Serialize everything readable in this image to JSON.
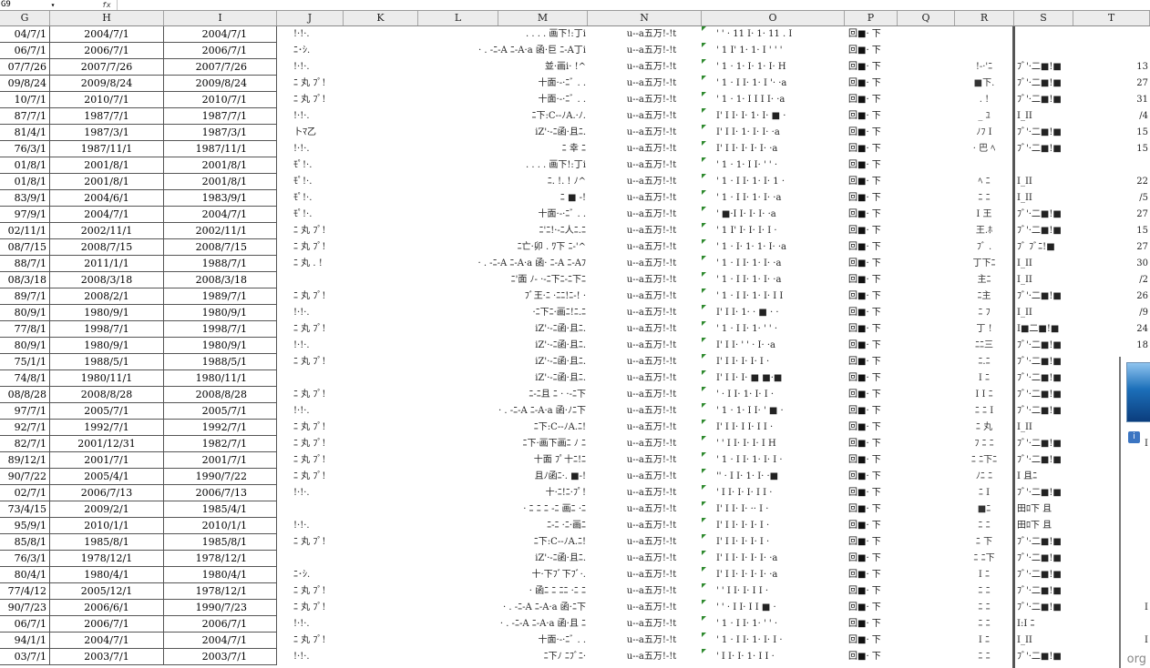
{
  "formula_bar": {
    "name_box": "G9",
    "fx_label": "fx",
    "dropdown_glyph": "▾"
  },
  "columns": [
    "G",
    "H",
    "J",
    "K",
    "L",
    "M",
    "N",
    "O",
    "P",
    "Q",
    "R",
    "S",
    "T"
  ],
  "columns_full": [
    "G",
    "H",
    "I",
    "J",
    "K",
    "L",
    "M",
    "N",
    "O",
    "P",
    "Q",
    "R",
    "S",
    "T"
  ],
  "rows": [
    {
      "g": "04/7/1",
      "h": "2004/7/1",
      "i": "2004/7/1",
      "j": "!·!·.",
      "l": ". . . . 画下!:丁i",
      "n": "u--a五万!-!t",
      "o": "' ' · 11 I· 1· 11 . I",
      "p": "回■· 下",
      "r": "",
      "s": "",
      "t": ""
    },
    {
      "g": "06/7/1",
      "h": "2006/7/1",
      "i": "2006/7/1",
      "j": "ﾆ･ｼ.",
      "l": "· . -ﾆ-A ﾆ-A·a 函·巨 ﾆ-A丁i",
      "n": "u--a五万!-!t",
      "o": "' 1 I' 1· 1· I ' ' '",
      "p": "回■· 下",
      "r": "",
      "s": "",
      "t": ""
    },
    {
      "g": "07/7/26",
      "h": "2007/7/26",
      "i": "2007/7/26",
      "j": "!·!·.",
      "l": "並·画i· !^",
      "n": "u--a五万!-!t",
      "o": "' 1 · 1· I· 1· I· H",
      "p": "回■· 下",
      "r": "!-·'ﾆ",
      "s": "ﾌﾞ'·二■!■",
      "t": "13"
    },
    {
      "g": "09/8/24",
      "h": "2009/8/24",
      "i": "2009/8/24",
      "j": "ﾆ 丸 ﾌﾟ!",
      "l": "十面·-·ﾆﾞ . .",
      "n": "u--a五万!-!t",
      "o": "' 1 · I I· 1· I '· ·a",
      "p": "回■· 下",
      "r": "■下.",
      "s": "ﾌﾞ'·二■!■",
      "t": "27"
    },
    {
      "g": "10/7/1",
      "h": "2010/7/1",
      "i": "2010/7/1",
      "j": "ﾆ 丸 ﾌﾟ!",
      "l": "十面·-·ﾆﾞ . .",
      "n": "u--a五万!-!t",
      "o": "' 1 · 1· I I I I· ·a",
      "p": "回■· 下",
      "r": ". !",
      "s": "ﾌﾞ'·二■!■",
      "t": "31"
    },
    {
      "g": "87/7/1",
      "h": "1987/7/1",
      "i": "1987/7/1",
      "j": "!·!·.",
      "l": "ﾆ下:C--ﾉA.·ﾉ.",
      "n": "u--a五万!-!t",
      "o": "I' I I· I· 1· I· ■ ·",
      "p": "回■· 下",
      "r": "_ ﾕ",
      "s": "I_II",
      "t": "/4"
    },
    {
      "g": "81/4/1",
      "h": "1987/3/1",
      "i": "1987/3/1",
      "j": "卜ﾏ乙",
      "l": "iZ'·-ﾆ函·且ﾆ.",
      "n": "u--a五万!-!t",
      "o": "I' I I· 1· I· I· ·a",
      "p": "回■· 下",
      "r": "ﾉﾌ I",
      "s": "ﾌﾞ'·二■!■",
      "t": "15"
    },
    {
      "g": "76/3/1",
      "h": "1987/11/1",
      "i": "1987/11/1",
      "j": "!·!·.",
      "l": "ﾆ 幸 ﾆ",
      "n": "u--a五万!-!t",
      "o": "I' I I· I· I· I· ·a",
      "p": "回■· 下",
      "r": "· 巴 ﾍ",
      "s": "ﾌﾞ'·二■!■",
      "t": "15"
    },
    {
      "g": "01/8/1",
      "h": "2001/8/1",
      "i": "2001/8/1",
      "j": "ﾓﾟ!·.",
      "l": ". . . . 画下!:丁i",
      "n": "u--a五万!-!t",
      "o": "' 1 · 1· I I· ' ' ·",
      "p": "回■· 下",
      "r": "",
      "s": "",
      "t": ""
    },
    {
      "g": "01/8/1",
      "h": "2001/8/1",
      "i": "2001/8/1",
      "j": "ﾓﾟ!·.",
      "l": "ﾆ. !. ! ﾉ^",
      "n": "u--a五万!-!t",
      "o": "' 1 · I I· 1· I· 1 ·",
      "p": "回■· 下",
      "r": "ﾍ ﾆ",
      "s": "I_II",
      "t": "22"
    },
    {
      "g": "83/9/1",
      "h": "2004/6/1",
      "i": "1983/9/1",
      "j": "ﾓﾟ!·.",
      "l": "ﾆ ■ -!",
      "n": "u--a五万!-!t",
      "o": "' 1 · I I· 1· I· ·a",
      "p": "回■· 下",
      "r": "ﾆ ﾆ",
      "s": "I_II",
      "t": "/5"
    },
    {
      "g": "97/9/1",
      "h": "2004/7/1",
      "i": "2004/7/1",
      "j": "ﾓﾟ!·.",
      "l": "十面·-·ﾆﾞ . .",
      "n": "u--a五万!-!t",
      "o": "' ■·I I· I· I· ·a",
      "p": "回■· 下",
      "r": "I 王",
      "s": "ﾌﾞ'·二■!■",
      "t": "27"
    },
    {
      "g": "02/11/1",
      "h": "2002/11/1",
      "i": "2002/11/1",
      "j": "ﾆ 丸 ﾌﾟ!",
      "l": "ﾆ'ﾆ!·-ﾆ人ﾆ.ﾆ",
      "n": "u--a五万!-!t",
      "o": "' 1 I' I· I· I· I ·",
      "p": "回■· 下",
      "r": "王.ﾎ",
      "s": "ﾌﾞ'·二■!■",
      "t": "15"
    },
    {
      "g": "08/7/15",
      "h": "2008/7/15",
      "i": "2008/7/15",
      "j": "ﾆ 丸 ﾌﾟ!",
      "l": "ﾆ亡·卯 . ﾜ下 ﾆ-'^",
      "n": "u--a五万!-!t",
      "o": "' 1 · I· 1· 1· I· ·a",
      "p": "回■· 下",
      "r": "ﾌﾞ .",
      "s": "ﾌﾞ ﾌﾞﾆ!■",
      "t": "27"
    },
    {
      "g": "88/7/1",
      "h": "2011/1/1",
      "i": "1988/7/1",
      "j": "ﾆ 丸 . !",
      "l": "· . -ﾆ-A ﾆ-A·a 函· ﾆ-A ﾆ-Aﾌ",
      "n": "u--a五万!-!t",
      "o": "' 1 · I I· 1· I· ·a",
      "p": "回■· 下",
      "r": "丁下ﾆ",
      "s": "I_II",
      "t": "30"
    },
    {
      "g": "08/3/18",
      "h": "2008/3/18",
      "i": "2008/3/18",
      "j": "",
      "l": "ﾆ'面 ﾉ- ·-ﾆ下ﾆ-ﾆ下ﾆ",
      "n": "u--a五万!-!t",
      "o": "' 1 · I I· 1· I· ·a",
      "p": "回■· 下",
      "r": "主ﾆ",
      "s": "I_II",
      "t": "/2"
    },
    {
      "g": "89/7/1",
      "h": "2008/2/1",
      "i": "1989/7/1",
      "j": "ﾆ 丸 ﾌﾟ!",
      "l": "ﾌﾞ王·ﾆ ·ﾆﾆ!ﾆ-! ·",
      "n": "u--a五万!-!t",
      "o": "' 1 · I I· 1· I· I I",
      "p": "回■· 下",
      "r": "ﾆ主",
      "s": "ﾌﾞ'·二■!■",
      "t": "26"
    },
    {
      "g": "80/9/1",
      "h": "1980/9/1",
      "i": "1980/9/1",
      "j": "!·!·.",
      "l": "·ﾆ下ﾆ·画ﾆ!ﾆ.ﾆ",
      "n": "u--a五万!-!t",
      "o": "I' I I· 1· · ■ · ·",
      "p": "回■· 下",
      "r": "ﾆ ﾌ",
      "s": "I_II",
      "t": "/9"
    },
    {
      "g": "77/8/1",
      "h": "1998/7/1",
      "i": "1998/7/1",
      "j": "ﾆ 丸 ﾌﾟ!",
      "l": "iZ'·-ﾆ函·且ﾆ.",
      "n": "u--a五万!-!t",
      "o": "' 1 · I I· 1· ' ' ·",
      "p": "回■· 下",
      "r": "丁 !",
      "s": "I■二■!■",
      "t": "24"
    },
    {
      "g": "80/9/1",
      "h": "1980/9/1",
      "i": "1980/9/1",
      "j": "!·!·.",
      "l": "iZ'·-ﾆ函·且ﾆ.",
      "n": "u--a五万!-!t",
      "o": "I' I I· ' ' · I· ·a",
      "p": "回■· 下",
      "r": "ﾆﾆ三",
      "s": "ﾌﾞ'·二■!■",
      "t": "18"
    },
    {
      "g": "75/1/1",
      "h": "1988/5/1",
      "i": "1988/5/1",
      "j": "ﾆ 丸 ﾌﾟ!",
      "l": "iZ'·-ﾆ函·且ﾆ.",
      "n": "u--a五万!-!t",
      "o": "I' I I· I· I· I ·",
      "p": "回■· 下",
      "r": "ﾆ.ﾆ",
      "s": "ﾌﾞ'·二■!■",
      "t": ""
    },
    {
      "g": "74/8/1",
      "h": "1980/11/1",
      "i": "1980/11/1",
      "j": "",
      "l": "iZ'·-ﾆ函·且ﾆ.",
      "n": "u--a五万!-!t",
      "o": "I' I I· I· ■ ■·■",
      "p": "回■· 下",
      "r": "I ﾆ",
      "s": "ﾌﾞ'·二■!■",
      "t": ""
    },
    {
      "g": "08/8/28",
      "h": "2008/8/28",
      "i": "2008/8/28",
      "j": "ﾆ 丸 ﾌﾟ!",
      "l": "ﾆ-ﾆ且 ﾆ · ·-ﾆ下",
      "n": "u--a五万!-!t",
      "o": "' · I I· 1· I· I ·",
      "p": "回■· 下",
      "r": "I I ﾆ",
      "s": "ﾌﾞ'·二■!■",
      "t": ""
    },
    {
      "g": "97/7/1",
      "h": "2005/7/1",
      "i": "2005/7/1",
      "j": "!·!·.",
      "l": "· . -ﾆ-A ﾆ-A·a 函·ﾉﾆ下",
      "n": "u--a五万!-!t",
      "o": "' 1 · 1· I I· ' ■ ·",
      "p": "回■· 下",
      "r": "ﾆ ﾆ I",
      "s": "ﾌﾞ'·二■!■",
      "t": "I"
    },
    {
      "g": "92/7/1",
      "h": "1992/7/1",
      "i": "1992/7/1",
      "j": "ﾆ 丸 ﾌﾟ!",
      "l": "ﾆ下:C--ﾉA.ﾆ!",
      "n": "u--a五万!-!t",
      "o": "I' I I· I I· I I ·",
      "p": "回■· 下",
      "r": "ﾆ 丸",
      "s": "I_II",
      "t": ""
    },
    {
      "g": "82/7/1",
      "h": "2001/12/31",
      "i": "1982/7/1",
      "j": "ﾆ 丸 ﾌﾟ!",
      "l": "ﾆ下·画下画ﾆ ﾉ ﾆ",
      "n": "u--a五万!-!t",
      "o": "' ' I I· I· I· I H",
      "p": "回■· 下",
      "r": "ﾌ ﾆ ﾆ",
      "s": "ﾌﾞ'·二■!■",
      "t": "I"
    },
    {
      "g": "89/12/1",
      "h": "2001/7/1",
      "i": "2001/7/1",
      "j": "ﾆ 丸 ﾌﾟ!",
      "l": "十面 ﾌﾟ十ﾆ!ﾆ",
      "n": "u--a五万!-!t",
      "o": "' 1 · I I· 1· I· I ·",
      "p": "回■· 下",
      "r": "ﾆ ﾆ下ﾆ",
      "s": "ﾌﾞ'·二■!■",
      "t": ""
    },
    {
      "g": "90/7/22",
      "h": "2005/4/1",
      "i": "1990/7/22",
      "j": "ﾆ 丸 ﾌﾟ!",
      "l": "且ﾉ函ﾆ·. ■-!",
      "n": "u--a五万!-!t",
      "o": "'' · I I· 1· I· ·■",
      "p": "回■· 下",
      "r": "ﾉﾆ ﾆ",
      "s": "I 且ﾆ",
      "t": ""
    },
    {
      "g": "02/7/1",
      "h": "2006/7/13",
      "i": "2006/7/13",
      "j": "!·!·.",
      "l": "十·ﾆ!ﾆ·ﾌﾟ!",
      "n": "u--a五万!-!t",
      "o": "' I I· I· I· I I ·",
      "p": "回■· 下",
      "r": "ﾆ I",
      "s": "ﾌﾞ'·二■!■",
      "t": ""
    },
    {
      "g": "73/4/15",
      "h": "2009/2/1",
      "i": "1985/4/1",
      "j": "",
      "l": "· ﾆ ﾆ ﾆ -ﾆ 画ﾆ ·ﾆ",
      "n": "u--a五万!-!t",
      "o": "I' I I· I· ·· I ·",
      "p": "回■· 下",
      "r": "■ﾆ",
      "s": "田ﾛ下 且",
      "t": ""
    },
    {
      "g": "95/9/1",
      "h": "2010/1/1",
      "i": "2010/1/1",
      "j": "!·!·.",
      "l": "ﾆ-ﾆ ·ﾆ·画ﾆ",
      "n": "u--a五万!-!t",
      "o": "I' I I· I· I· I ·",
      "p": "回■· 下",
      "r": "ﾆ ﾆ",
      "s": "田ﾛ下 且",
      "t": ""
    },
    {
      "g": "85/8/1",
      "h": "1985/8/1",
      "i": "1985/8/1",
      "j": "ﾆ 丸 ﾌﾟ!",
      "l": "ﾆ下:C--ﾉA.ﾆ!",
      "n": "u--a五万!-!t",
      "o": "I' I I· I· I· I ·",
      "p": "回■· 下",
      "r": "ﾆ 下",
      "s": "ﾌﾞ'·二■!■",
      "t": ""
    },
    {
      "g": "76/3/1",
      "h": "1978/12/1",
      "i": "1978/12/1",
      "j": "",
      "l": "iZ'·-ﾆ函·且ﾆ.",
      "n": "u--a五万!-!t",
      "o": "I' I I· I· I· I· ·a",
      "p": "回■· 下",
      "r": "ﾆ ﾆ下",
      "s": "ﾌﾞ'·二■!■",
      "t": ""
    },
    {
      "g": "80/4/1",
      "h": "1980/4/1",
      "i": "1980/4/1",
      "j": "ﾆ･ｼ.",
      "l": "十·下ﾌﾞ下ﾌﾞ·.",
      "n": "u--a五万!-!t",
      "o": "I' I I· I· I· I· ·a",
      "p": "回■· 下",
      "r": "I ﾆ",
      "s": "ﾌﾞ'·二■!■",
      "t": ""
    },
    {
      "g": "77/4/12",
      "h": "2005/12/1",
      "i": "1978/12/1",
      "j": "ﾆ 丸 ﾌﾟ!",
      "l": "· 函ﾆ ﾆ ﾆﾆ ·ﾆ ﾆ",
      "n": "u--a五万!-!t",
      "o": "' ' I I· I· I I ·",
      "p": "回■· 下",
      "r": "ﾆ ﾆ",
      "s": "ﾌﾞ'·二■!■",
      "t": ""
    },
    {
      "g": "90/7/23",
      "h": "2006/6/1",
      "i": "1990/7/23",
      "j": "ﾆ 丸 ﾌﾟ!",
      "l": "· . -ﾆ-A ﾆ-A·a 函·ﾆ下",
      "n": "u--a五万!-!t",
      "o": "' ' · I I· I I ■ ·",
      "p": "回■· 下",
      "r": "ﾆ ﾆ",
      "s": "ﾌﾞ'·二■!■",
      "t": "I"
    },
    {
      "g": "06/7/1",
      "h": "2006/7/1",
      "i": "2006/7/1",
      "j": "!·!·.",
      "l": "· . -ﾆ-A ﾆ-A·a 函·且 ﾆ",
      "n": "u--a五万!-!t",
      "o": "' 1 · I I· 1· ' ' ·",
      "p": "回■· 下",
      "r": "ﾆ ﾆ",
      "s": "I:I ﾆ",
      "t": ""
    },
    {
      "g": "94/1/1",
      "h": "2004/7/1",
      "i": "2004/7/1",
      "j": "ﾆ 丸 ﾌﾟ!",
      "l": "十面·-·ﾆﾞ . .",
      "n": "u--a五万!-!t",
      "o": "' 1 · I I· 1· I· I ·",
      "p": "回■· 下",
      "r": "I ﾆ",
      "s": "I_II",
      "t": "I"
    },
    {
      "g": "03/7/1",
      "h": "2003/7/1",
      "i": "2003/7/1",
      "j": "!·!·.",
      "l": "ﾆ下ﾉ ﾆﾌﾞﾆ·",
      "n": "u--a五万!-!t",
      "o": "' I I· I· 1· I I ·",
      "p": "回■· 下",
      "r": "ﾆ ﾆ",
      "s": "ﾌﾞ'·二■!■",
      "t": ""
    }
  ],
  "floating": {
    "icon_glyph": "i"
  },
  "watermark": "org"
}
